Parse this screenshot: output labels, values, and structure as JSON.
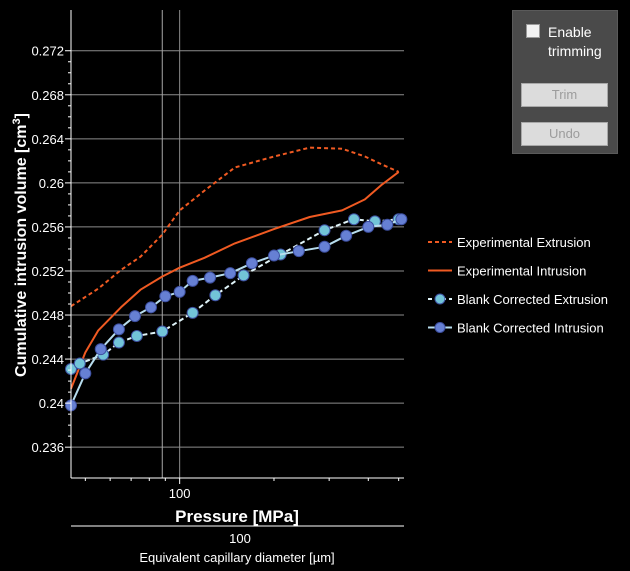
{
  "panel": {
    "enable_label": "Enable trimming",
    "trim_label": "Trim",
    "undo_label": "Undo",
    "checked": false
  },
  "chart_data": {
    "type": "line",
    "xlabel": "Pressure [MPa]",
    "ylabel_prefix": "Cumulative intrusion volume [cm",
    "ylabel_sup": "3",
    "ylabel_suffix": "]",
    "x2label": "Equivalent capillary diameter [µm]",
    "x_scale": "log",
    "xlim": [
      45,
      520
    ],
    "ylim": [
      0.2332,
      0.2757
    ],
    "x_ticks": [
      100
    ],
    "x2_tick_label": "100",
    "y_ticks": [
      0.236,
      0.24,
      0.244,
      0.248,
      0.252,
      0.256,
      0.26,
      0.264,
      0.268,
      0.272
    ],
    "y_tick_labels": [
      "0.236",
      "0.24",
      "0.244",
      "0.248",
      "0.252",
      "0.256",
      "0.26",
      "0.264",
      "0.268",
      "0.272"
    ],
    "vline_x": 88,
    "grid": true,
    "legend_position": "right",
    "series": [
      {
        "name": "Experimental Extrusion",
        "color": "#f05a22",
        "style": "dashed",
        "markers": false,
        "x": [
          45,
          55,
          65,
          75,
          88,
          100,
          120,
          150,
          200,
          260,
          330,
          390,
          440,
          500
        ],
        "y": [
          0.2488,
          0.2504,
          0.2521,
          0.2533,
          0.2553,
          0.2575,
          0.2593,
          0.2614,
          0.2624,
          0.2632,
          0.2631,
          0.2624,
          0.2617,
          0.261
        ]
      },
      {
        "name": "Experimental Intrusion",
        "color": "#f05a22",
        "style": "solid",
        "markers": false,
        "x": [
          45,
          50,
          55,
          65,
          75,
          88,
          100,
          120,
          150,
          200,
          260,
          330,
          390,
          440,
          500
        ],
        "y": [
          0.2413,
          0.2446,
          0.2466,
          0.2487,
          0.2503,
          0.2515,
          0.2523,
          0.2532,
          0.2545,
          0.2558,
          0.2569,
          0.2575,
          0.2585,
          0.2598,
          0.261
        ]
      },
      {
        "name": "Blank Corrected Extrusion",
        "color": "#72c4d8",
        "line_color": "#dff3f8",
        "style": "dashed",
        "markers": true,
        "x": [
          45,
          48,
          57,
          64,
          73,
          88,
          110,
          130,
          160,
          210,
          290,
          360,
          420,
          500
        ],
        "y": [
          0.2431,
          0.2436,
          0.2444,
          0.2455,
          0.2461,
          0.2465,
          0.2482,
          0.2498,
          0.2516,
          0.2535,
          0.2557,
          0.2567,
          0.2565,
          0.2567
        ]
      },
      {
        "name": "Blank Corrected Intrusion",
        "color": "#6680d4",
        "line_color": "#b7ddee",
        "style": "solid",
        "markers": true,
        "x": [
          45,
          50,
          56,
          64,
          72,
          81,
          90,
          100,
          110,
          125,
          145,
          170,
          200,
          240,
          290,
          340,
          400,
          460,
          510
        ],
        "y": [
          0.2398,
          0.2427,
          0.2449,
          0.2467,
          0.2479,
          0.2487,
          0.2497,
          0.2501,
          0.2511,
          0.2514,
          0.2518,
          0.2527,
          0.2534,
          0.2538,
          0.2542,
          0.2552,
          0.256,
          0.2562,
          0.2567
        ]
      }
    ]
  }
}
